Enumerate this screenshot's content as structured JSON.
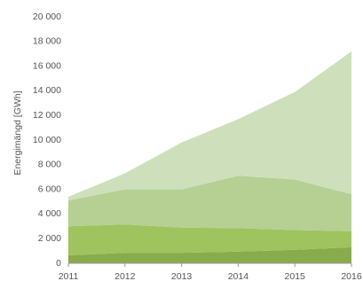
{
  "chart_data": {
    "type": "stacked_area",
    "y_label": "Energimängd [GWh]",
    "x": [
      2011,
      2012,
      2013,
      2014,
      2015,
      2016
    ],
    "xlim": [
      2011,
      2016
    ],
    "xticks": [
      2011,
      2012,
      2013,
      2014,
      2015,
      2016
    ],
    "ylim": [
      0,
      20000
    ],
    "yticks": [
      0,
      {
        "value": 2000,
        "label": "2 000"
      },
      {
        "value": 4000,
        "label": "4 000"
      },
      {
        "value": 6000,
        "label": "6 000"
      },
      {
        "value": 8000,
        "label": "8 000"
      },
      {
        "value": 10000,
        "label": "10 000"
      },
      {
        "value": 12000,
        "label": "12 000"
      },
      {
        "value": 14000,
        "label": "14 000"
      },
      {
        "value": 16000,
        "label": "16 000"
      },
      {
        "value": 18000,
        "label": "18 000"
      },
      {
        "value": 20000,
        "label": "20 000"
      }
    ],
    "series": [
      {
        "color": "#8aab4c",
        "values": [
          650,
          850,
          850,
          950,
          1100,
          1300
        ]
      },
      {
        "color": "#9fc35e",
        "values": [
          2350,
          2300,
          2050,
          1900,
          1600,
          1300
        ]
      },
      {
        "color": "#b5d092",
        "values": [
          2100,
          2850,
          3100,
          4250,
          4100,
          3000
        ]
      },
      {
        "color": "#cde0bb",
        "values": [
          300,
          1300,
          3800,
          4600,
          7100,
          11600
        ]
      }
    ]
  }
}
